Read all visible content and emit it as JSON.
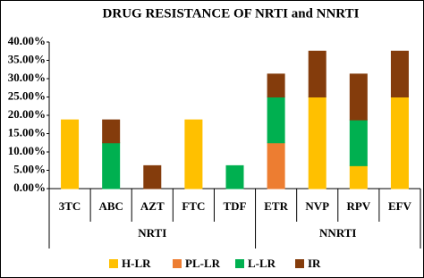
{
  "chart_data": {
    "type": "stacked-bar",
    "title": "DRUG RESISTANCE OF NRTI and NNRTI",
    "groups": [
      {
        "name": "NRTI",
        "categories": [
          "3TC",
          "ABC",
          "AZT",
          "FTC",
          "TDF"
        ]
      },
      {
        "name": "NNRTI",
        "categories": [
          "ETR",
          "NVP",
          "RPV",
          "EFV"
        ]
      }
    ],
    "series": [
      {
        "name": "H-LR",
        "color": "#FFC000",
        "values": [
          18.75,
          0,
          0,
          18.75,
          0,
          0,
          25,
          6.25,
          25
        ]
      },
      {
        "name": "PL-LR",
        "color": "#ED7D31",
        "values": [
          0,
          0,
          0,
          0,
          0,
          12.5,
          0,
          0,
          0
        ]
      },
      {
        "name": "L-LR",
        "color": "#00B050",
        "values": [
          0,
          12.5,
          0,
          0,
          6.25,
          12.5,
          0,
          12.5,
          0
        ]
      },
      {
        "name": "IR",
        "color": "#843C0C",
        "values": [
          0,
          6.25,
          6.25,
          0,
          0,
          6.25,
          12.5,
          12.5,
          12.5
        ]
      }
    ],
    "ylim": [
      0,
      40
    ],
    "yticks": [
      {
        "value": 0,
        "label": "0.00%"
      },
      {
        "value": 5,
        "label": "5.00%"
      },
      {
        "value": 10,
        "label": "10.00%"
      },
      {
        "value": 15,
        "label": "15.00%"
      },
      {
        "value": 20,
        "label": "20.00%"
      },
      {
        "value": 25,
        "label": "25.00%"
      },
      {
        "value": 30,
        "label": "30.00%"
      },
      {
        "value": 35,
        "label": "35.00%"
      },
      {
        "value": 40,
        "label": "40.00%"
      }
    ],
    "grid": false,
    "legend": "bottom"
  }
}
